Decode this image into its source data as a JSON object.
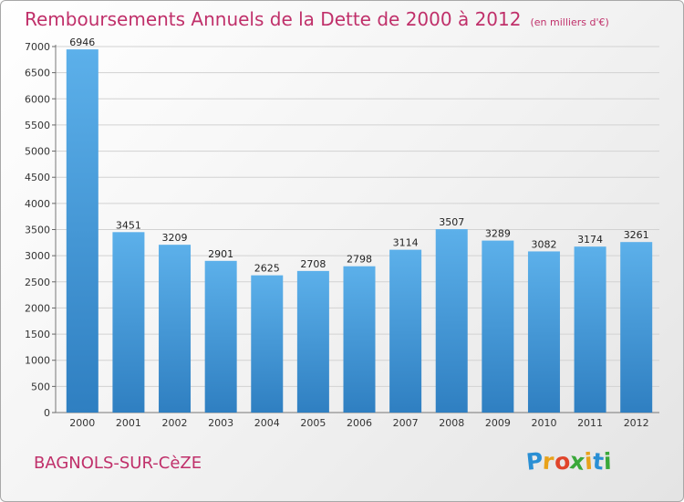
{
  "chart_data": {
    "type": "bar",
    "title": "Remboursements Annuels de la Dette de 2000 à 2012",
    "subtitle": "(en milliers d'€)",
    "categories": [
      "2000",
      "2001",
      "2002",
      "2003",
      "2004",
      "2005",
      "2006",
      "2007",
      "2008",
      "2009",
      "2010",
      "2011",
      "2012"
    ],
    "values": [
      6946,
      3451,
      3209,
      2901,
      2625,
      2708,
      2798,
      3114,
      3507,
      3289,
      3082,
      3174,
      3261
    ],
    "ylim": [
      0,
      7000
    ],
    "yticks": [
      0,
      500,
      1000,
      1500,
      2000,
      2500,
      3000,
      3500,
      4000,
      4500,
      5000,
      5500,
      6000,
      6500,
      7000
    ],
    "grid": true,
    "legend": "none",
    "bar_color": "#4a9ad8"
  },
  "location": "BAGNOLS-SUR-CèZE",
  "brand": {
    "letters": [
      "P",
      "r",
      "o",
      "x",
      "i",
      "t",
      "i"
    ],
    "colors": [
      "#2a8fd4",
      "#e8a21a",
      "#e0452b",
      "#3aa83a",
      "#e8a21a",
      "#2a8fd4",
      "#3aa83a"
    ]
  }
}
